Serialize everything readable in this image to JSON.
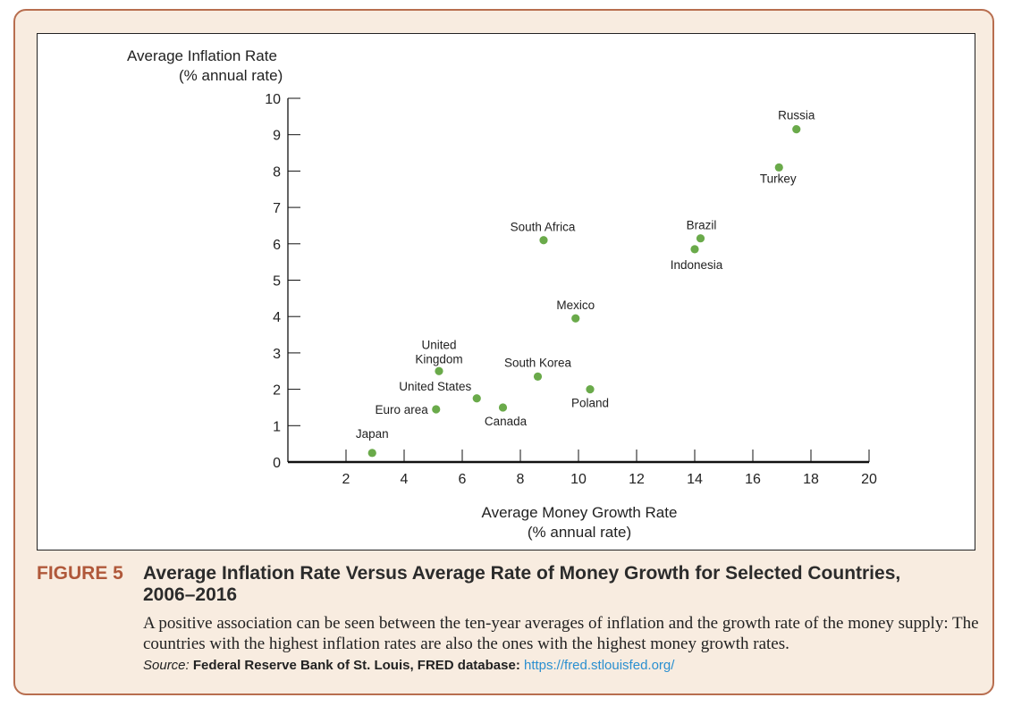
{
  "chart_data": {
    "type": "scatter",
    "ylabel": [
      "Average Inflation Rate",
      "(% annual rate)"
    ],
    "xlabel": [
      "Average Money Growth Rate",
      "(% annual rate)"
    ],
    "xlim": [
      0,
      20
    ],
    "ylim": [
      0,
      10
    ],
    "xticks": [
      2,
      4,
      6,
      8,
      10,
      12,
      14,
      16,
      18,
      20
    ],
    "yticks": [
      0,
      1,
      2,
      3,
      4,
      5,
      6,
      7,
      8,
      9,
      10
    ],
    "grid": false,
    "point_color": "#6aaa4a",
    "points": [
      {
        "label": "Japan",
        "x": 2.9,
        "y": 0.25
      },
      {
        "label": "Euro area",
        "x": 5.1,
        "y": 1.45
      },
      {
        "label": "United Kingdom",
        "x": 5.2,
        "y": 2.5
      },
      {
        "label": "United States",
        "x": 6.5,
        "y": 1.75
      },
      {
        "label": "Canada",
        "x": 7.4,
        "y": 1.5
      },
      {
        "label": "South Korea",
        "x": 8.6,
        "y": 2.35
      },
      {
        "label": "Poland",
        "x": 10.4,
        "y": 2.0
      },
      {
        "label": "Mexico",
        "x": 9.9,
        "y": 3.95
      },
      {
        "label": "South Africa",
        "x": 8.8,
        "y": 6.1
      },
      {
        "label": "Brazil",
        "x": 14.2,
        "y": 6.15
      },
      {
        "label": "Indonesia",
        "x": 14.0,
        "y": 5.85
      },
      {
        "label": "Turkey",
        "x": 16.9,
        "y": 8.1
      },
      {
        "label": "Russia",
        "x": 17.5,
        "y": 9.15
      }
    ]
  },
  "figure": {
    "label": "FIGURE 5",
    "title": "Average Inflation Rate Versus Average Rate of Money Growth for Selected Countries, 2006–2016",
    "description": "A positive association can be seen between the ten-year averages of inflation and the growth rate of the money supply: The countries with the highest inflation rates are also the ones with the highest money growth rates.",
    "source_label": "Source:",
    "source_name": "Federal Reserve Bank of St. Louis, FRED database:",
    "source_url": "https://fred.stlouisfed.org/"
  },
  "colors": {
    "accent": "#b0583a",
    "frame_border": "#b86e4f",
    "frame_background": "#f8ece0",
    "link": "#2a8fd0"
  }
}
